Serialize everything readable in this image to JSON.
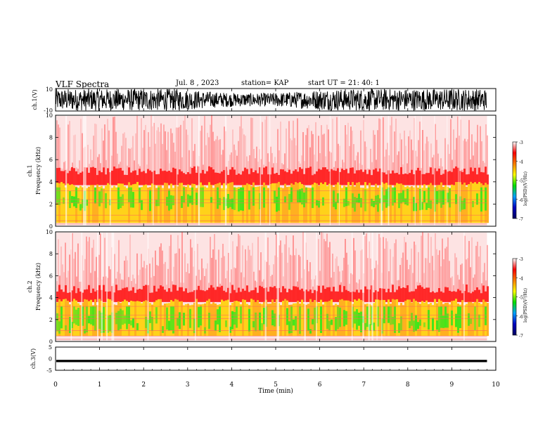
{
  "header": {
    "title": "VLF Spectra",
    "date": "Jul. 8 , 2023",
    "station": "station= KAP",
    "start_time": "start UT = 21: 40: 1"
  },
  "colors": {
    "waveform": "#000000",
    "spectrum_high": "#ff2020",
    "spectrum_mid": "#ffe600",
    "spectrum_low": "#3ee61a",
    "colorbar": [
      "#ffffff",
      "#ff0000",
      "#ff8000",
      "#ffff00",
      "#00e000",
      "#00a0ff",
      "#0000c0",
      "#000060"
    ]
  },
  "chart_data": [
    {
      "type": "line",
      "name": "channel 1 waveform",
      "ylabel": "ch.1(V)",
      "ylim": [
        -10,
        10
      ],
      "yticks": [
        "10",
        "-10"
      ],
      "xlim": [
        0,
        10
      ],
      "x_extent_min": 9.8,
      "description_values": "dense noise waveform saturating near ±10 V"
    },
    {
      "type": "heatmap",
      "ylabel": "ch.1 Frequency (kHz)",
      "ylim": [
        0,
        10
      ],
      "yticks": [
        "0",
        "2",
        "4",
        "6",
        "8",
        "10"
      ],
      "xlim": [
        0,
        9.8
      ],
      "bands_kHz": {
        "high_level": [
          0.3,
          3.7
        ],
        "mid_level": [
          1.3,
          3.5
        ],
        "red_level": [
          3.7,
          5.0
        ]
      },
      "colorbar": {
        "label": "log(PSD)(V²/Hz)",
        "range": [
          -7,
          -3
        ],
        "ticks": [
          "-3",
          "-4",
          "-5",
          "-6",
          "-7"
        ]
      }
    },
    {
      "type": "heatmap",
      "ylabel": "ch.2 Frequency (kHz)",
      "ylim": [
        0,
        10
      ],
      "yticks": [
        "0",
        "2",
        "4",
        "6",
        "8",
        "10"
      ],
      "xlim": [
        0,
        9.8
      ],
      "bands_kHz": {
        "high_level": [
          0.5,
          3.6
        ],
        "mid_level": [
          0.7,
          3.2
        ],
        "red_level": [
          3.6,
          4.8
        ]
      },
      "colorbar": {
        "label": "log(PSD)(V²/Hz)",
        "range": [
          -7,
          -3
        ],
        "ticks": [
          "-3",
          "-4",
          "-5",
          "-6",
          "-7"
        ]
      }
    },
    {
      "type": "line",
      "name": "channel 3 waveform",
      "ylabel": "ch.3(V)",
      "ylim": [
        -5,
        5
      ],
      "yticks": [
        "5",
        "0",
        "-5"
      ],
      "center_value": -1,
      "amplitude": 0.5,
      "xlabel": "Time (min)",
      "xlim": [
        0,
        10
      ],
      "xticks": [
        "0",
        "1",
        "2",
        "3",
        "4",
        "5",
        "6",
        "7",
        "8",
        "9",
        "10"
      ]
    }
  ]
}
